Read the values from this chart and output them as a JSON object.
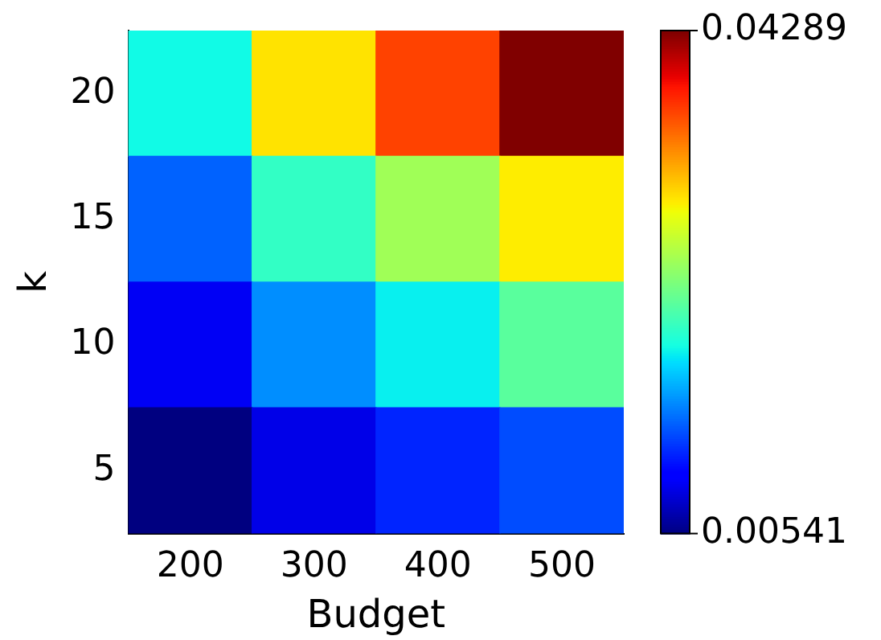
{
  "chart_data": {
    "type": "heatmap",
    "xlabel": "Budget",
    "ylabel": "k",
    "categories": [
      "200",
      "300",
      "400",
      "500"
    ],
    "y_categories": [
      "20",
      "15",
      "10",
      "5"
    ],
    "cells": [
      [
        0.0193,
        0.0305,
        0.0369,
        0.04289
      ],
      [
        0.0137,
        0.0208,
        0.0258,
        0.0301
      ],
      [
        0.0092,
        0.0153,
        0.0189,
        0.0226
      ],
      [
        0.00541,
        0.0088,
        0.0114,
        0.0129
      ]
    ],
    "clim": [
      0.00541,
      0.04289
    ],
    "cticks": [
      0.00541,
      0.04289
    ]
  }
}
